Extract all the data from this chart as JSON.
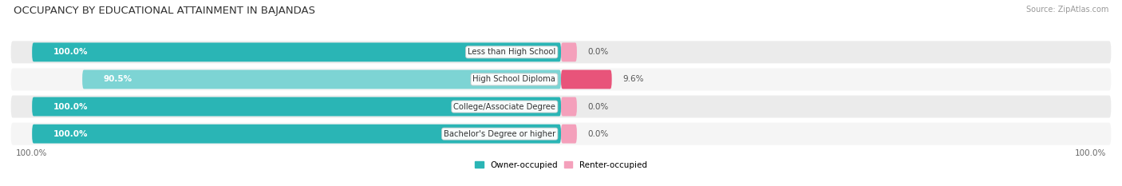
{
  "title": "OCCUPANCY BY EDUCATIONAL ATTAINMENT IN BAJANDAS",
  "source": "Source: ZipAtlas.com",
  "categories": [
    "Less than High School",
    "High School Diploma",
    "College/Associate Degree",
    "Bachelor's Degree or higher"
  ],
  "owner_values": [
    100.0,
    90.5,
    100.0,
    100.0
  ],
  "renter_values": [
    0.0,
    9.6,
    0.0,
    0.0
  ],
  "owner_color": "#2ab5b5",
  "owner_color_light": "#7dd4d4",
  "renter_color_strong": "#e8547a",
  "renter_color_light": "#f4a0bb",
  "row_bg": "#e8e8e8",
  "title_fontsize": 9.5,
  "source_fontsize": 7,
  "label_fontsize": 7.5,
  "axis_fontsize": 7.5,
  "figsize": [
    14.06,
    2.33
  ],
  "dpi": 100,
  "legend_owner": "Owner-occupied",
  "legend_renter": "Renter-occupied"
}
